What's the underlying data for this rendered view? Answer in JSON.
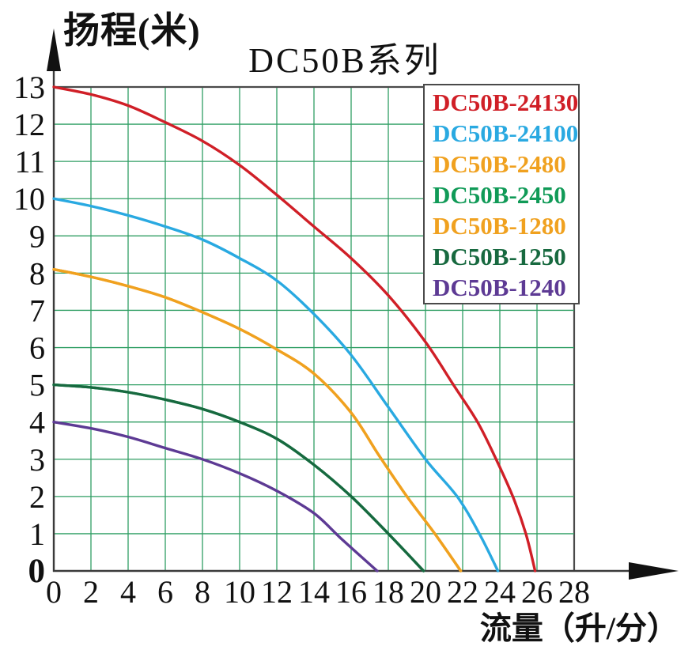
{
  "title": "DC50B系列",
  "axes": {
    "y_label": "扬程(米)",
    "x_label": "流量（升/分）"
  },
  "legend": {
    "items": [
      {
        "label": "DC50B-24130",
        "color": "#d01f27"
      },
      {
        "label": "DC50B-24100",
        "color": "#29a9e1"
      },
      {
        "label": "DC50B-2480",
        "color": "#f0a11f"
      },
      {
        "label": "DC50B-2450",
        "color": "#109a57"
      },
      {
        "label": "DC50B-1280",
        "color": "#f0a11f"
      },
      {
        "label": "DC50B-1250",
        "color": "#17693f"
      },
      {
        "label": "DC50B-1240",
        "color": "#5d3a94"
      }
    ]
  },
  "colors": {
    "grid": "#2f9e63",
    "frame": "#4a4a4a",
    "axis": "#3a3a3a",
    "arrow": "#111111",
    "tick_text": "#111111",
    "background": "#ffffff",
    "legend_border": "#4a4a4a"
  },
  "chart_data": {
    "type": "line",
    "title": "DC50B系列",
    "xlabel": "流量（升/分）",
    "ylabel": "扬程(米)",
    "xlim": [
      0,
      28
    ],
    "ylim": [
      0,
      13
    ],
    "xticks": [
      0,
      2,
      4,
      6,
      8,
      10,
      12,
      14,
      16,
      18,
      20,
      22,
      24,
      26,
      28
    ],
    "yticks": [
      0,
      1,
      2,
      3,
      4,
      5,
      6,
      7,
      8,
      9,
      10,
      11,
      12,
      13
    ],
    "grid": true,
    "legend_position": "top-right",
    "series": [
      {
        "name": "DC50B-24130",
        "color": "#d01f27",
        "points": [
          [
            0,
            13
          ],
          [
            2,
            12.8
          ],
          [
            4,
            12.5
          ],
          [
            6,
            12.05
          ],
          [
            8,
            11.55
          ],
          [
            10,
            10.9
          ],
          [
            12,
            10.1
          ],
          [
            14,
            9.25
          ],
          [
            16,
            8.4
          ],
          [
            18,
            7.4
          ],
          [
            20,
            6.15
          ],
          [
            21.5,
            5
          ],
          [
            22.8,
            4
          ],
          [
            23.8,
            3
          ],
          [
            24.7,
            2
          ],
          [
            25.4,
            1
          ],
          [
            25.9,
            0
          ]
        ]
      },
      {
        "name": "DC50B-24100",
        "color": "#29a9e1",
        "points": [
          [
            0,
            10
          ],
          [
            2,
            9.8
          ],
          [
            4,
            9.55
          ],
          [
            6,
            9.25
          ],
          [
            8,
            8.9
          ],
          [
            10,
            8.4
          ],
          [
            12,
            7.8
          ],
          [
            14,
            6.9
          ],
          [
            16,
            5.8
          ],
          [
            18,
            4.4
          ],
          [
            20,
            3.0
          ],
          [
            21.7,
            2.0
          ],
          [
            22.9,
            1.0
          ],
          [
            23.9,
            0
          ]
        ]
      },
      {
        "name": "DC50B-2480",
        "color": "#f0a11f",
        "points": [
          [
            0,
            8.1
          ],
          [
            2,
            7.9
          ],
          [
            4,
            7.65
          ],
          [
            6,
            7.35
          ],
          [
            8,
            6.95
          ],
          [
            10,
            6.5
          ],
          [
            12,
            5.95
          ],
          [
            14,
            5.3
          ],
          [
            16,
            4.25
          ],
          [
            17.5,
            3.1
          ],
          [
            19,
            2.0
          ],
          [
            20.5,
            1.0
          ],
          [
            21.9,
            0
          ]
        ]
      },
      {
        "name": "DC50B-2450",
        "color": "#109a57",
        "points": [
          [
            0,
            5
          ],
          [
            2,
            4.93
          ],
          [
            4,
            4.8
          ],
          [
            6,
            4.6
          ],
          [
            8,
            4.35
          ],
          [
            10,
            4.0
          ],
          [
            12,
            3.55
          ],
          [
            14,
            2.85
          ],
          [
            16,
            2.0
          ],
          [
            18,
            1.0
          ],
          [
            19.9,
            0
          ]
        ]
      },
      {
        "name": "DC50B-1280",
        "color": "#f0a11f",
        "points": [
          [
            0,
            8.1
          ],
          [
            2,
            7.9
          ],
          [
            4,
            7.65
          ],
          [
            6,
            7.35
          ],
          [
            8,
            6.95
          ],
          [
            10,
            6.5
          ],
          [
            12,
            5.95
          ],
          [
            14,
            5.3
          ],
          [
            16,
            4.25
          ],
          [
            17.5,
            3.1
          ],
          [
            19,
            2.0
          ],
          [
            20.5,
            1.0
          ],
          [
            21.9,
            0
          ]
        ]
      },
      {
        "name": "DC50B-1250",
        "color": "#17693f",
        "points": [
          [
            0,
            5
          ],
          [
            2,
            4.93
          ],
          [
            4,
            4.8
          ],
          [
            6,
            4.6
          ],
          [
            8,
            4.35
          ],
          [
            10,
            4.0
          ],
          [
            12,
            3.55
          ],
          [
            14,
            2.85
          ],
          [
            16,
            2.0
          ],
          [
            18,
            1.0
          ],
          [
            19.9,
            0
          ]
        ]
      },
      {
        "name": "DC50B-1240",
        "color": "#5d3a94",
        "points": [
          [
            0,
            4
          ],
          [
            2,
            3.83
          ],
          [
            4,
            3.6
          ],
          [
            6,
            3.3
          ],
          [
            8,
            3.0
          ],
          [
            10,
            2.62
          ],
          [
            12,
            2.15
          ],
          [
            14,
            1.55
          ],
          [
            15.5,
            0.85
          ],
          [
            17.4,
            0
          ]
        ]
      }
    ]
  }
}
